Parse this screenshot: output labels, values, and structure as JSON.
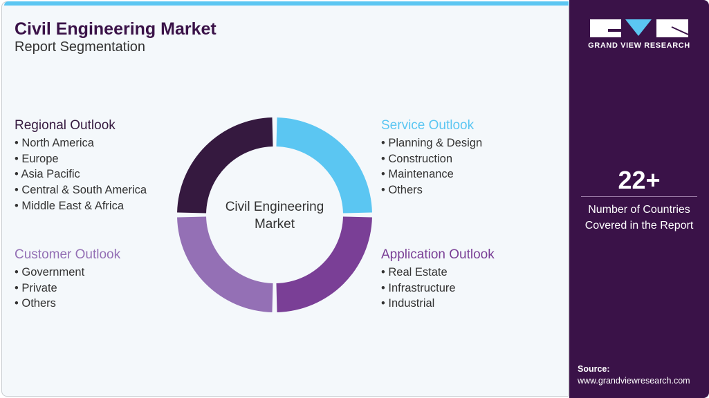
{
  "header": {
    "title": "Civil Engineering Market",
    "subtitle": "Report Segmentation"
  },
  "center_label": "Civil Engineering Market",
  "segments": [
    {
      "title": "Regional Outlook",
      "color": "#35193f",
      "items": [
        "North America",
        "Europe",
        "Asia Pacific",
        "Central & South America",
        "Middle East & Africa"
      ]
    },
    {
      "title": "Service Outlook",
      "color": "#5bc6f2",
      "items": [
        "Planning & Design",
        "Construction",
        "Maintenance",
        "Others"
      ]
    },
    {
      "title": "Customer Outlook",
      "color": "#9470b5",
      "items": [
        "Government",
        "Private",
        "Others"
      ]
    },
    {
      "title": "Application Outlook",
      "color": "#7a3f96",
      "items": [
        "Real Estate",
        "Infrastructure",
        "Industrial"
      ]
    }
  ],
  "sidebar": {
    "logo_text": "GRAND VIEW RESEARCH",
    "stat_value": "22+",
    "stat_label": "Number of Countries Covered in the Report",
    "source_label": "Source:",
    "source_url": "www.grandviewresearch.com"
  }
}
